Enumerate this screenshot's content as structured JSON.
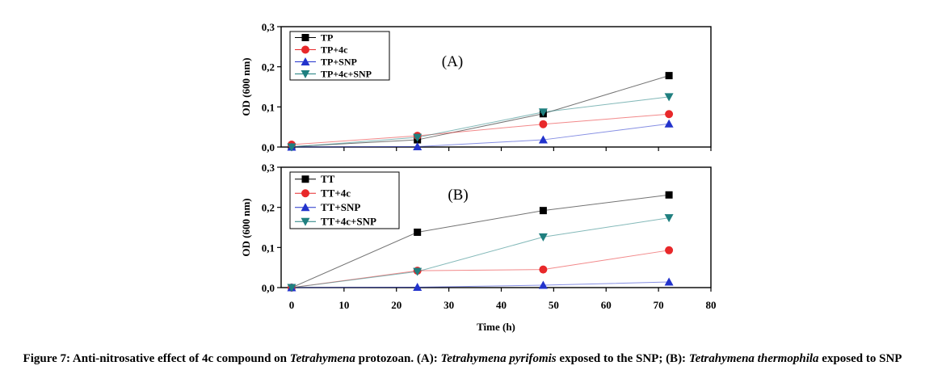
{
  "colors": {
    "TP": "#000000",
    "TP+4c": "#e8282a",
    "TP+SNP": "#2233cc",
    "TP+4c+SNP": "#1f7f7f"
  },
  "chart_data": [
    {
      "type": "line",
      "panel_label": "(A)",
      "ylabel": "OD (600 nm)",
      "xlabel": "",
      "xlim": [
        -2,
        80
      ],
      "ylim": [
        0,
        0.3
      ],
      "yticks": [
        "0,0",
        "0,1",
        "0,2",
        "0,3"
      ],
      "ytick_values": [
        0,
        0.1,
        0.2,
        0.3
      ],
      "xticks": [],
      "xtick_values": [
        0,
        10,
        20,
        30,
        40,
        50,
        60,
        70,
        80
      ],
      "legend_position": "top-left",
      "x": [
        0,
        24,
        48,
        72
      ],
      "series": [
        {
          "name": "TP",
          "marker": "square",
          "color": "#000000",
          "values": [
            0.001,
            0.018,
            0.083,
            0.178
          ]
        },
        {
          "name": "TP+4c",
          "marker": "circle",
          "color": "#e8282a",
          "values": [
            0.006,
            0.028,
            0.057,
            0.082
          ]
        },
        {
          "name": "TP+SNP",
          "marker": "triangle-up",
          "color": "#2233cc",
          "values": [
            0.0,
            0.001,
            0.018,
            0.058
          ]
        },
        {
          "name": "TP+4c+SNP",
          "marker": "triangle-down",
          "color": "#1f7f7f",
          "values": [
            0.0,
            0.024,
            0.087,
            0.125
          ]
        }
      ]
    },
    {
      "type": "line",
      "panel_label": "(B)",
      "ylabel": "OD (600 nm)",
      "xlabel": "Time (h)",
      "xlim": [
        -2,
        80
      ],
      "ylim": [
        0,
        0.3
      ],
      "yticks": [
        "0,0",
        "0,1",
        "0,2",
        "0,3"
      ],
      "ytick_values": [
        0,
        0.1,
        0.2,
        0.3
      ],
      "xticks": [
        "0",
        "10",
        "20",
        "30",
        "40",
        "50",
        "60",
        "70",
        "80"
      ],
      "xtick_values": [
        0,
        10,
        20,
        30,
        40,
        50,
        60,
        70,
        80
      ],
      "legend_position": "top-left",
      "x": [
        0,
        24,
        48,
        72
      ],
      "series": [
        {
          "name": "TT",
          "marker": "square",
          "color": "#000000",
          "values": [
            0.0,
            0.138,
            0.192,
            0.231
          ]
        },
        {
          "name": "TT+4c",
          "marker": "circle",
          "color": "#e8282a",
          "values": [
            0.0,
            0.042,
            0.045,
            0.093
          ]
        },
        {
          "name": "TT+SNP",
          "marker": "triangle-up",
          "color": "#2233cc",
          "values": [
            0.0,
            0.001,
            0.006,
            0.014
          ]
        },
        {
          "name": "TT+4c+SNP",
          "marker": "triangle-down",
          "color": "#1f7f7f",
          "values": [
            0.0,
            0.04,
            0.126,
            0.174
          ]
        }
      ]
    }
  ],
  "caption": {
    "p1": "Figure 7: Anti-nitrosative effect of 4c compound on ",
    "i1": "Tetrahymena",
    "p2": " protozoan. (A): ",
    "i2": "Tetrahymena pyrifomis",
    "p3": " exposed to the SNP; (B): ",
    "i3": "Tetrahymena thermophila",
    "p4": " exposed to SNP"
  }
}
